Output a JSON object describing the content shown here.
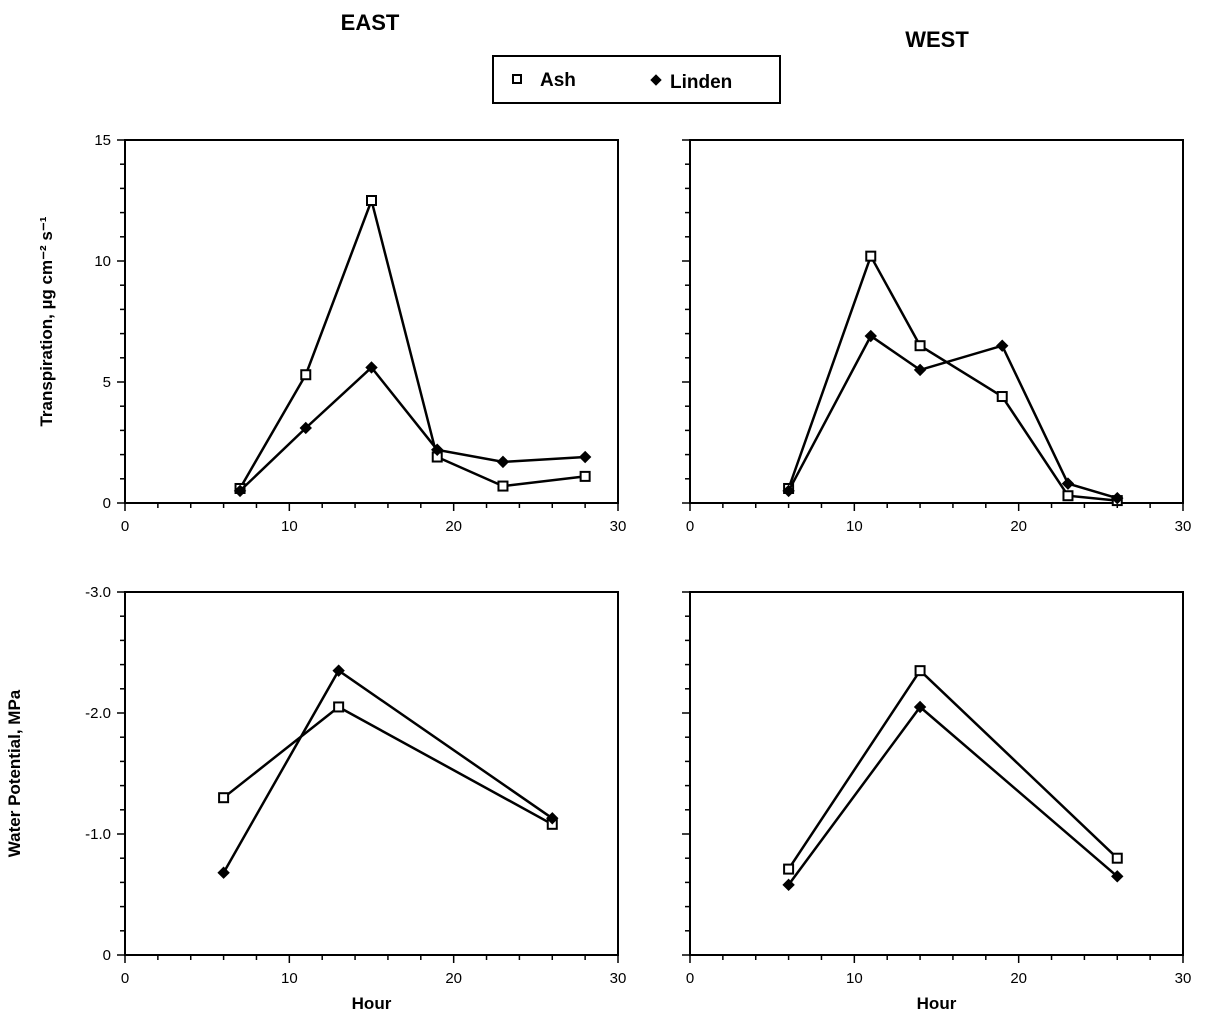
{
  "headings": {
    "east": "EAST",
    "west": "WEST"
  },
  "legend": [
    {
      "label": "Ash",
      "marker": "open-square"
    },
    {
      "label": "Linden",
      "marker": "filled-diamond"
    }
  ],
  "colors": {
    "ink": "#000000",
    "background": "#ffffff"
  },
  "chart_data": [
    {
      "type": "line",
      "panel": "EAST",
      "title": "EAST",
      "xlabel": "",
      "ylabel": "Transpiration, µg cm⁻² s⁻¹",
      "xlim": [
        0,
        30
      ],
      "ylim": [
        0,
        15
      ],
      "xticks": [
        "0",
        "10",
        "20",
        "30"
      ],
      "yticks": [
        "0",
        "5",
        "10",
        "15"
      ],
      "grid": false,
      "series": [
        {
          "name": "Ash",
          "marker": "open-square",
          "x": [
            7,
            11,
            15,
            19,
            23,
            28
          ],
          "y": [
            0.6,
            5.3,
            12.5,
            1.9,
            0.7,
            1.1
          ]
        },
        {
          "name": "Linden",
          "marker": "filled-diamond",
          "x": [
            7,
            11,
            15,
            19,
            23,
            28
          ],
          "y": [
            0.5,
            3.1,
            5.6,
            2.2,
            1.7,
            1.9
          ]
        }
      ]
    },
    {
      "type": "line",
      "panel": "WEST",
      "title": "WEST",
      "xlabel": "",
      "ylabel": "",
      "xlim": [
        0,
        30
      ],
      "ylim": [
        0,
        15
      ],
      "xticks": [
        "0",
        "10",
        "20",
        "30"
      ],
      "yticks": [],
      "grid": false,
      "series": [
        {
          "name": "Ash",
          "marker": "open-square",
          "x": [
            6,
            11,
            14,
            19,
            23,
            26
          ],
          "y": [
            0.6,
            10.2,
            6.5,
            4.4,
            0.3,
            0.1
          ]
        },
        {
          "name": "Linden",
          "marker": "filled-diamond",
          "x": [
            6,
            11,
            14,
            19,
            23,
            26
          ],
          "y": [
            0.5,
            6.9,
            5.5,
            6.5,
            0.8,
            0.2
          ]
        }
      ]
    },
    {
      "type": "line",
      "panel": "EAST",
      "title": "",
      "xlabel": "Hour",
      "ylabel": "Water Potential, MPa",
      "xlim": [
        0,
        30
      ],
      "ylim": [
        0,
        -3.0
      ],
      "xticks": [
        "0",
        "10",
        "20",
        "30"
      ],
      "yticks": [
        "0",
        "-1.0",
        "-2.0",
        "-3.0"
      ],
      "grid": false,
      "series": [
        {
          "name": "Ash",
          "marker": "open-square",
          "x": [
            6,
            13,
            26
          ],
          "y": [
            -1.3,
            -2.05,
            -1.08
          ]
        },
        {
          "name": "Linden",
          "marker": "filled-diamond",
          "x": [
            6,
            13,
            26
          ],
          "y": [
            -0.68,
            -2.35,
            -1.13
          ]
        }
      ]
    },
    {
      "type": "line",
      "panel": "WEST",
      "title": "",
      "xlabel": "Hour",
      "ylabel": "",
      "xlim": [
        0,
        30
      ],
      "ylim": [
        0,
        -3.0
      ],
      "xticks": [
        "0",
        "10",
        "20",
        "30"
      ],
      "yticks": [],
      "grid": false,
      "series": [
        {
          "name": "Ash",
          "marker": "open-square",
          "x": [
            6,
            14,
            26
          ],
          "y": [
            -0.71,
            -2.35,
            -0.8
          ]
        },
        {
          "name": "Linden",
          "marker": "filled-diamond",
          "x": [
            6,
            14,
            26
          ],
          "y": [
            -0.58,
            -2.05,
            -0.65
          ]
        }
      ]
    }
  ]
}
